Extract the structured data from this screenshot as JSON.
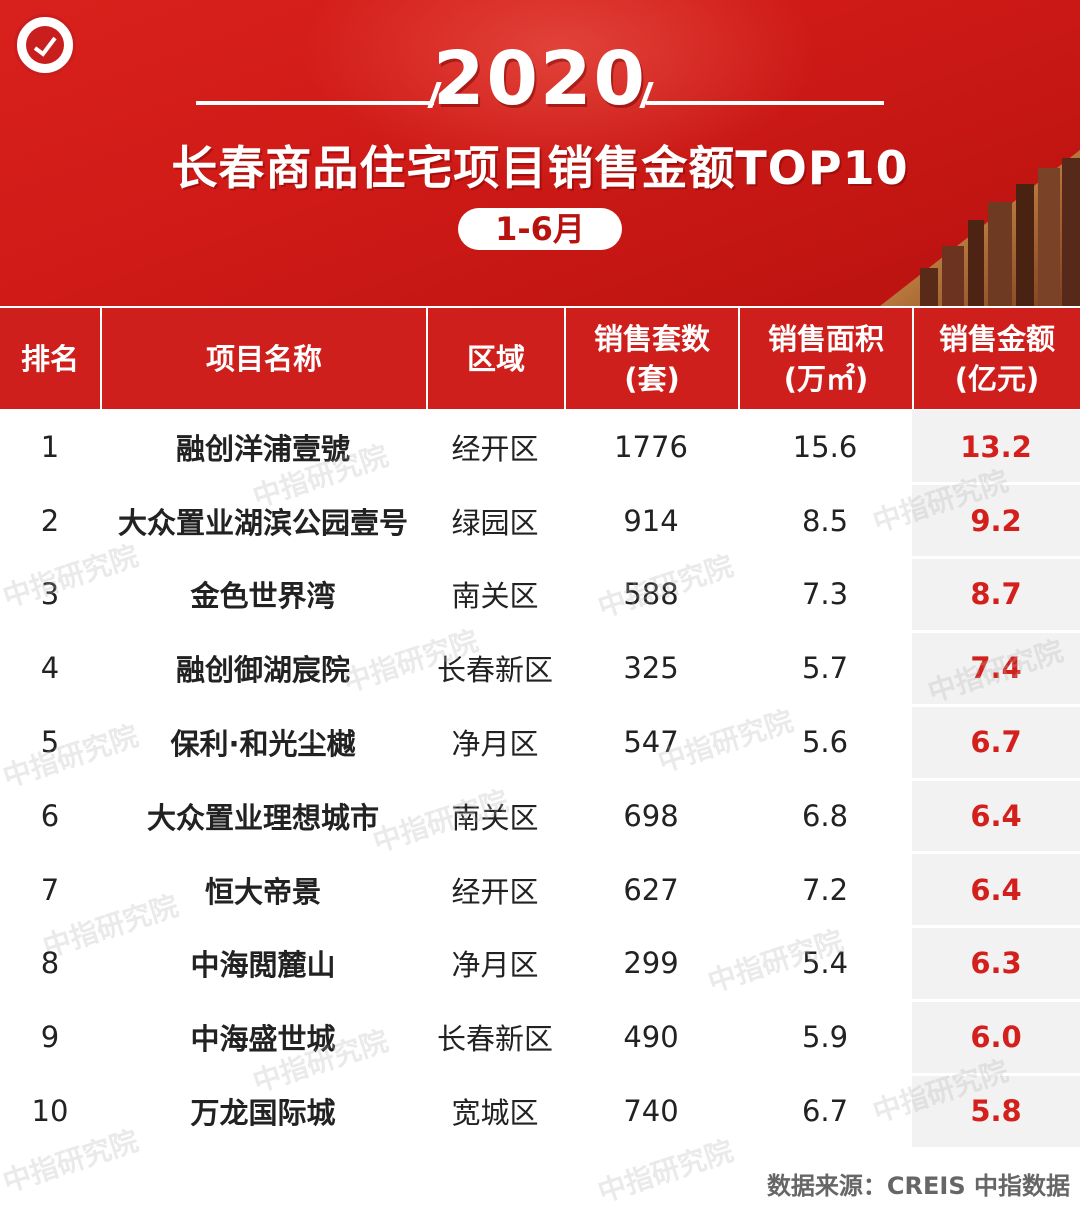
{
  "header": {
    "year": "2020",
    "title": "长春商品住宅项目销售金额TOP10",
    "period": "1-6月"
  },
  "colors": {
    "accent": "#cf1f1c",
    "highlight": "#d3201c",
    "amount_bg": "#f2f2f2"
  },
  "icons": {
    "logo": "institute-seal-logo",
    "skyline": "city-skyline-image"
  },
  "chart_data": {
    "type": "table",
    "title": "长春商品住宅项目销售金额TOP10",
    "columns": [
      {
        "key": "rank",
        "label": "排名"
      },
      {
        "key": "name",
        "label": "项目名称"
      },
      {
        "key": "district",
        "label": "区域"
      },
      {
        "key": "units",
        "label": "销售套数\n(套)"
      },
      {
        "key": "area",
        "label": "销售面积\n(万㎡)"
      },
      {
        "key": "amount",
        "label": "销售金额\n(亿元)"
      }
    ],
    "rows": [
      {
        "rank": "1",
        "name": "融创洋浦壹號",
        "district": "经开区",
        "units": "1776",
        "area": "15.6",
        "amount": "13.2"
      },
      {
        "rank": "2",
        "name": "大众置业湖滨公园壹号",
        "district": "绿园区",
        "units": "914",
        "area": "8.5",
        "amount": "9.2"
      },
      {
        "rank": "3",
        "name": "金色世界湾",
        "district": "南关区",
        "units": "588",
        "area": "7.3",
        "amount": "8.7"
      },
      {
        "rank": "4",
        "name": "融创御湖宸院",
        "district": "长春新区",
        "units": "325",
        "area": "5.7",
        "amount": "7.4"
      },
      {
        "rank": "5",
        "name": "保利·和光尘樾",
        "district": "净月区",
        "units": "547",
        "area": "5.6",
        "amount": "6.7"
      },
      {
        "rank": "6",
        "name": "大众置业理想城市",
        "district": "南关区",
        "units": "698",
        "area": "6.8",
        "amount": "6.4"
      },
      {
        "rank": "7",
        "name": "恒大帝景",
        "district": "经开区",
        "units": "627",
        "area": "7.2",
        "amount": "6.4"
      },
      {
        "rank": "8",
        "name": "中海閲麓山",
        "district": "净月区",
        "units": "299",
        "area": "5.4",
        "amount": "6.3"
      },
      {
        "rank": "9",
        "name": "中海盛世城",
        "district": "长春新区",
        "units": "490",
        "area": "5.9",
        "amount": "6.0"
      },
      {
        "rank": "10",
        "name": "万龙国际城",
        "district": "宽城区",
        "units": "740",
        "area": "6.7",
        "amount": "5.8"
      }
    ]
  },
  "watermark": "中指研究院",
  "source": "数据来源：CREIS 中指数据"
}
